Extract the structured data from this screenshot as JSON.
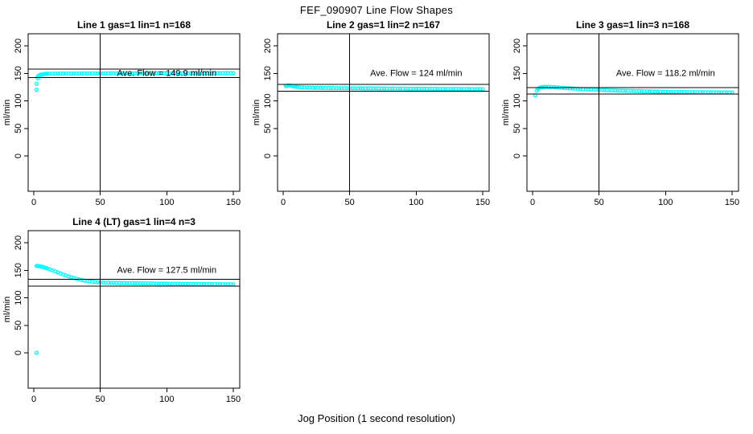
{
  "page": {
    "title": "FEF_090907  Line Flow Shapes",
    "xlabel": "Jog Position (1 second resolution)"
  },
  "colors": {
    "points": "#00FFFF",
    "axis": "#000000",
    "background": "#FFFFFF",
    "text": "#000000"
  },
  "chart_data": [
    {
      "type": "scatter",
      "title": "Line 1 gas=1 lin=1 n=168",
      "ylabel": "ml/min",
      "annotation": "Ave. Flow =  149.9  ml/min",
      "ave_flow_ml_min": 149.9,
      "n": 168,
      "vline_x": 50,
      "ref_lines_y": [
        157.4,
        142.4
      ],
      "xticks": [
        0,
        50,
        100,
        150
      ],
      "yticks": [
        0,
        50,
        100,
        150,
        200
      ],
      "xlim": [
        0,
        150
      ],
      "ylim": [
        0,
        200
      ],
      "points": [
        [
          2,
          120
        ],
        [
          2,
          131
        ],
        [
          3,
          141
        ],
        [
          3,
          144.5
        ],
        [
          4,
          146.2
        ],
        [
          5,
          147.4
        ],
        [
          6,
          148.1
        ],
        [
          7,
          148.5
        ],
        [
          8,
          148.8
        ],
        [
          9,
          149.0
        ],
        [
          10,
          149.1
        ],
        [
          12,
          149.3
        ],
        [
          14,
          149.4
        ],
        [
          16,
          149.5
        ],
        [
          18,
          149.5
        ],
        [
          20,
          149.6
        ],
        [
          22,
          149.6
        ],
        [
          24,
          149.7
        ],
        [
          26,
          149.6
        ],
        [
          28,
          149.7
        ],
        [
          30,
          149.7
        ],
        [
          32,
          149.8
        ],
        [
          34,
          149.7
        ],
        [
          36,
          149.8
        ],
        [
          38,
          149.8
        ],
        [
          40,
          149.8
        ],
        [
          42,
          149.9
        ],
        [
          44,
          149.8
        ],
        [
          46,
          149.9
        ],
        [
          48,
          149.9
        ],
        [
          50,
          149.9
        ],
        [
          52,
          149.9
        ],
        [
          54,
          150.0
        ],
        [
          56,
          149.9
        ],
        [
          58,
          150.0
        ],
        [
          60,
          150.0
        ],
        [
          62,
          149.9
        ],
        [
          64,
          150.0
        ],
        [
          66,
          150.0
        ],
        [
          68,
          150.1
        ],
        [
          70,
          150.0
        ],
        [
          72,
          150.0
        ],
        [
          74,
          150.1
        ],
        [
          76,
          150.0
        ],
        [
          78,
          150.1
        ],
        [
          80,
          150.1
        ],
        [
          82,
          150.0
        ],
        [
          84,
          150.1
        ],
        [
          86,
          150.1
        ],
        [
          88,
          150.2
        ],
        [
          90,
          150.1
        ],
        [
          92,
          150.1
        ],
        [
          94,
          150.2
        ],
        [
          96,
          150.1
        ],
        [
          98,
          150.2
        ],
        [
          100,
          150.2
        ],
        [
          102,
          150.1
        ],
        [
          104,
          150.2
        ],
        [
          106,
          150.2
        ],
        [
          108,
          150.3
        ],
        [
          110,
          150.2
        ],
        [
          112,
          150.2
        ],
        [
          114,
          150.3
        ],
        [
          116,
          150.2
        ],
        [
          118,
          150.3
        ],
        [
          120,
          150.3
        ],
        [
          122,
          150.2
        ],
        [
          124,
          150.3
        ],
        [
          126,
          150.3
        ],
        [
          128,
          150.4
        ],
        [
          130,
          150.3
        ],
        [
          132,
          150.3
        ],
        [
          134,
          150.4
        ],
        [
          136,
          150.3
        ],
        [
          138,
          150.4
        ],
        [
          140,
          150.4
        ],
        [
          142,
          150.3
        ],
        [
          144,
          150.4
        ],
        [
          146,
          150.4
        ],
        [
          148,
          150.5
        ],
        [
          150,
          150.4
        ]
      ]
    },
    {
      "type": "scatter",
      "title": "Line 2 gas=1 lin=2 n=167",
      "ylabel": "ml/min",
      "annotation": "Ave. Flow =  124  ml/min",
      "ave_flow_ml_min": 124,
      "n": 167,
      "vline_x": 50,
      "ref_lines_y": [
        130.2,
        117.8
      ],
      "xticks": [
        0,
        50,
        100,
        150
      ],
      "yticks": [
        0,
        50,
        100,
        150,
        200
      ],
      "xlim": [
        0,
        150
      ],
      "ylim": [
        0,
        200
      ],
      "points": [
        [
          2,
          126.8
        ],
        [
          3,
          127.6
        ],
        [
          4,
          128.0
        ],
        [
          5,
          127.9
        ],
        [
          6,
          127.4
        ],
        [
          7,
          126.9
        ],
        [
          8,
          126.4
        ],
        [
          9,
          126.0
        ],
        [
          10,
          125.6
        ],
        [
          12,
          125.1
        ],
        [
          14,
          124.7
        ],
        [
          16,
          124.4
        ],
        [
          18,
          124.1
        ],
        [
          20,
          123.9
        ],
        [
          22,
          123.8
        ],
        [
          24,
          123.7
        ],
        [
          26,
          123.6
        ],
        [
          28,
          123.5
        ],
        [
          30,
          123.4
        ],
        [
          32,
          123.4
        ],
        [
          34,
          123.3
        ],
        [
          36,
          123.3
        ],
        [
          38,
          123.2
        ],
        [
          40,
          123.2
        ],
        [
          42,
          123.1
        ],
        [
          44,
          123.1
        ],
        [
          46,
          123.0
        ],
        [
          48,
          123.0
        ],
        [
          50,
          123.0
        ],
        [
          52,
          122.9
        ],
        [
          54,
          122.9
        ],
        [
          56,
          122.8
        ],
        [
          58,
          122.8
        ],
        [
          60,
          122.8
        ],
        [
          62,
          122.7
        ],
        [
          64,
          122.7
        ],
        [
          66,
          122.6
        ],
        [
          68,
          122.6
        ],
        [
          70,
          122.6
        ],
        [
          72,
          122.5
        ],
        [
          74,
          122.5
        ],
        [
          76,
          122.5
        ],
        [
          78,
          122.4
        ],
        [
          80,
          122.4
        ],
        [
          82,
          122.4
        ],
        [
          84,
          122.3
        ],
        [
          86,
          122.3
        ],
        [
          88,
          122.3
        ],
        [
          90,
          122.2
        ],
        [
          92,
          122.2
        ],
        [
          94,
          122.2
        ],
        [
          96,
          122.1
        ],
        [
          98,
          122.1
        ],
        [
          100,
          122.1
        ],
        [
          102,
          122.0
        ],
        [
          104,
          122.0
        ],
        [
          106,
          122.0
        ],
        [
          108,
          122.0
        ],
        [
          110,
          121.9
        ],
        [
          112,
          121.9
        ],
        [
          114,
          121.9
        ],
        [
          116,
          121.9
        ],
        [
          118,
          121.8
        ],
        [
          120,
          121.8
        ],
        [
          122,
          121.8
        ],
        [
          124,
          121.8
        ],
        [
          126,
          121.7
        ],
        [
          128,
          121.7
        ],
        [
          130,
          121.7
        ],
        [
          132,
          121.7
        ],
        [
          134,
          121.6
        ],
        [
          136,
          121.6
        ],
        [
          138,
          121.6
        ],
        [
          140,
          121.6
        ],
        [
          142,
          121.5
        ],
        [
          144,
          121.5
        ],
        [
          146,
          121.5
        ],
        [
          148,
          121.5
        ],
        [
          150,
          121.5
        ]
      ]
    },
    {
      "type": "scatter",
      "title": "Line 3 gas=1 lin=3 n=168",
      "ylabel": "ml/min",
      "annotation": "Ave. Flow =  118.2  ml/min",
      "ave_flow_ml_min": 118.2,
      "n": 168,
      "vline_x": 50,
      "ref_lines_y": [
        124.1,
        112.3
      ],
      "xticks": [
        0,
        50,
        100,
        150
      ],
      "yticks": [
        0,
        50,
        100,
        150,
        200
      ],
      "xlim": [
        0,
        150
      ],
      "ylim": [
        0,
        200
      ],
      "points": [
        [
          2,
          110.0
        ],
        [
          3,
          118.5
        ],
        [
          4,
          121.5
        ],
        [
          5,
          123.2
        ],
        [
          6,
          124.2
        ],
        [
          7,
          124.8
        ],
        [
          8,
          125.1
        ],
        [
          9,
          125.3
        ],
        [
          10,
          125.4
        ],
        [
          12,
          125.4
        ],
        [
          14,
          125.2
        ],
        [
          16,
          124.9
        ],
        [
          18,
          124.5
        ],
        [
          20,
          124.1
        ],
        [
          22,
          123.8
        ],
        [
          24,
          123.4
        ],
        [
          26,
          123.1
        ],
        [
          28,
          122.8
        ],
        [
          30,
          122.5
        ],
        [
          32,
          122.2
        ],
        [
          34,
          121.9
        ],
        [
          36,
          121.6
        ],
        [
          38,
          121.4
        ],
        [
          40,
          121.1
        ],
        [
          42,
          120.9
        ],
        [
          44,
          120.7
        ],
        [
          46,
          120.5
        ],
        [
          48,
          120.3
        ],
        [
          50,
          120.1
        ],
        [
          52,
          119.9
        ],
        [
          54,
          119.7
        ],
        [
          56,
          119.5
        ],
        [
          58,
          119.3
        ],
        [
          60,
          119.2
        ],
        [
          62,
          119.0
        ],
        [
          64,
          118.8
        ],
        [
          66,
          118.7
        ],
        [
          68,
          118.5
        ],
        [
          70,
          118.4
        ],
        [
          72,
          118.2
        ],
        [
          74,
          118.1
        ],
        [
          76,
          117.9
        ],
        [
          78,
          117.8
        ],
        [
          80,
          117.7
        ],
        [
          82,
          117.5
        ],
        [
          84,
          117.4
        ],
        [
          86,
          117.3
        ],
        [
          88,
          117.2
        ],
        [
          90,
          117.1
        ],
        [
          92,
          117.0
        ],
        [
          94,
          116.9
        ],
        [
          96,
          116.8
        ],
        [
          98,
          116.7
        ],
        [
          100,
          116.6
        ],
        [
          102,
          116.5
        ],
        [
          104,
          116.4
        ],
        [
          106,
          116.3
        ],
        [
          108,
          116.3
        ],
        [
          110,
          116.2
        ],
        [
          112,
          116.1
        ],
        [
          114,
          116.1
        ],
        [
          116,
          116.0
        ],
        [
          118,
          115.9
        ],
        [
          120,
          115.9
        ],
        [
          122,
          115.8
        ],
        [
          124,
          115.8
        ],
        [
          126,
          115.7
        ],
        [
          128,
          115.7
        ],
        [
          130,
          115.6
        ],
        [
          132,
          115.6
        ],
        [
          134,
          115.5
        ],
        [
          136,
          115.5
        ],
        [
          138,
          115.5
        ],
        [
          140,
          115.4
        ],
        [
          142,
          115.4
        ],
        [
          144,
          115.4
        ],
        [
          146,
          115.3
        ],
        [
          148,
          115.3
        ],
        [
          150,
          115.3
        ]
      ]
    },
    {
      "type": "scatter",
      "title": "Line 4 (LT) gas=1 lin=4 n=3",
      "ylabel": "ml/min",
      "annotation": "Ave. Flow =  127.5  ml/min",
      "ave_flow_ml_min": 127.5,
      "n": 3,
      "vline_x": 50,
      "ref_lines_y": [
        133.9,
        121.1
      ],
      "xticks": [
        0,
        50,
        100,
        150
      ],
      "yticks": [
        0,
        50,
        100,
        150,
        200
      ],
      "xlim": [
        0,
        150
      ],
      "ylim": [
        0,
        200
      ],
      "points": [
        [
          2,
          0
        ],
        [
          2,
          158.0
        ],
        [
          3,
          157.8
        ],
        [
          4,
          157.4
        ],
        [
          5,
          157.0
        ],
        [
          6,
          156.4
        ],
        [
          7,
          155.8
        ],
        [
          8,
          155.0
        ],
        [
          9,
          154.2
        ],
        [
          10,
          153.4
        ],
        [
          12,
          151.6
        ],
        [
          14,
          149.8
        ],
        [
          16,
          147.9
        ],
        [
          18,
          146.0
        ],
        [
          20,
          144.2
        ],
        [
          22,
          142.4
        ],
        [
          24,
          140.6
        ],
        [
          26,
          139.0
        ],
        [
          28,
          137.4
        ],
        [
          30,
          135.9
        ],
        [
          32,
          134.6
        ],
        [
          34,
          133.4
        ],
        [
          36,
          132.3
        ],
        [
          38,
          131.3
        ],
        [
          40,
          130.5
        ],
        [
          42,
          129.8
        ],
        [
          44,
          129.2
        ],
        [
          46,
          128.7
        ],
        [
          48,
          128.3
        ],
        [
          50,
          128.0
        ],
        [
          52,
          127.7
        ],
        [
          54,
          127.5
        ],
        [
          56,
          127.3
        ],
        [
          58,
          127.2
        ],
        [
          60,
          127.1
        ],
        [
          62,
          127.0
        ],
        [
          64,
          126.9
        ],
        [
          66,
          126.8
        ],
        [
          68,
          126.7
        ],
        [
          70,
          126.6
        ],
        [
          72,
          126.6
        ],
        [
          74,
          126.5
        ],
        [
          76,
          126.4
        ],
        [
          78,
          126.4
        ],
        [
          80,
          126.3
        ],
        [
          82,
          126.2
        ],
        [
          84,
          126.2
        ],
        [
          86,
          126.1
        ],
        [
          88,
          126.0
        ],
        [
          90,
          126.0
        ],
        [
          92,
          125.9
        ],
        [
          94,
          125.9
        ],
        [
          96,
          125.8
        ],
        [
          98,
          125.7
        ],
        [
          100,
          125.7
        ],
        [
          102,
          125.6
        ],
        [
          104,
          125.6
        ],
        [
          106,
          125.5
        ],
        [
          108,
          125.5
        ],
        [
          110,
          125.4
        ],
        [
          112,
          125.4
        ],
        [
          114,
          125.3
        ],
        [
          116,
          125.3
        ],
        [
          118,
          125.2
        ],
        [
          120,
          125.2
        ],
        [
          122,
          125.1
        ],
        [
          124,
          125.1
        ],
        [
          126,
          125.0
        ],
        [
          128,
          125.0
        ],
        [
          130,
          124.9
        ],
        [
          132,
          124.9
        ],
        [
          134,
          124.8
        ],
        [
          136,
          124.8
        ],
        [
          138,
          124.8
        ],
        [
          140,
          124.7
        ],
        [
          142,
          124.7
        ],
        [
          144,
          124.6
        ],
        [
          146,
          124.6
        ],
        [
          148,
          124.6
        ],
        [
          150,
          124.5
        ]
      ]
    }
  ]
}
